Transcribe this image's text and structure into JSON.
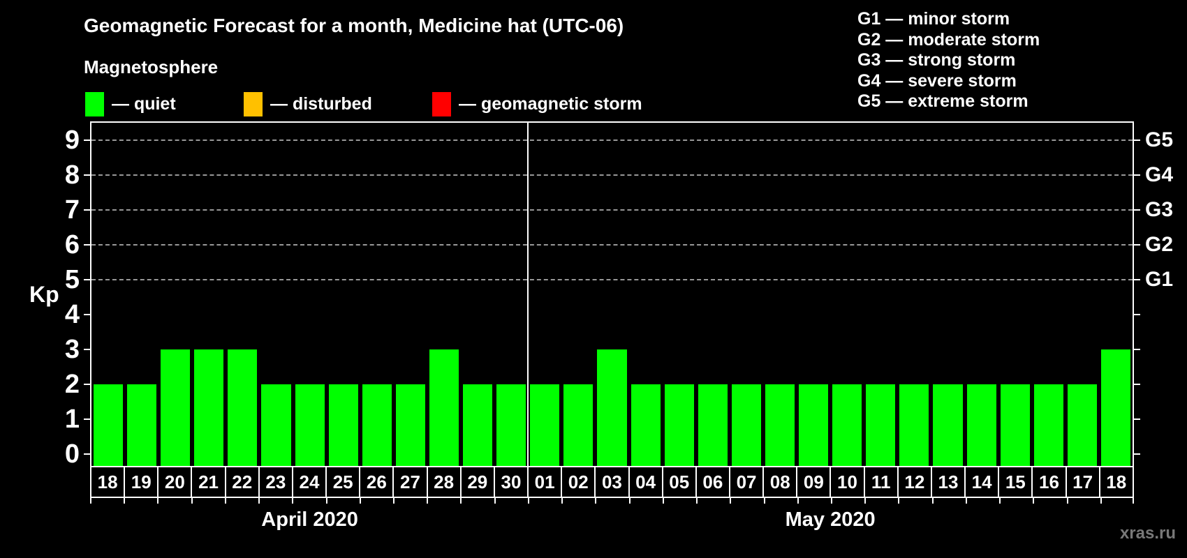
{
  "title": "Geomagnetic Forecast for a month, Medicine hat (UTC-06)",
  "legend": {
    "heading": "Magnetosphere",
    "items": [
      {
        "name": "quiet",
        "label": "— quiet",
        "color": "#00ff00"
      },
      {
        "name": "disturbed",
        "label": "— disturbed",
        "color": "#ffc000"
      },
      {
        "name": "storm",
        "label": "— geomagnetic storm",
        "color": "#ff0000"
      }
    ]
  },
  "g_scale_legend": [
    "G1 — minor storm",
    "G2 — moderate storm",
    "G3 — strong storm",
    "G4 — severe storm",
    "G5 — extreme storm"
  ],
  "watermark": "xras.ru",
  "chart_data": {
    "type": "bar",
    "title": "Geomagnetic Forecast for a month, Medicine hat (UTC-06)",
    "ylabel": "Kp",
    "ylim": [
      0,
      9
    ],
    "yticks": [
      0,
      1,
      2,
      3,
      4,
      5,
      6,
      7,
      8,
      9
    ],
    "gridlines_at": [
      5,
      6,
      7,
      8,
      9
    ],
    "grid": "dashed horizontal at G-storm levels only",
    "legend_position": "top",
    "right_axis": [
      {
        "kp": 5,
        "label": "G1"
      },
      {
        "kp": 6,
        "label": "G2"
      },
      {
        "kp": 7,
        "label": "G3"
      },
      {
        "kp": 8,
        "label": "G4"
      },
      {
        "kp": 9,
        "label": "G5"
      }
    ],
    "color_thresholds": {
      "quiet_max": 3,
      "disturbed_max": 4
    },
    "months": [
      {
        "label": "April 2020",
        "days": [
          "18",
          "19",
          "20",
          "21",
          "22",
          "23",
          "24",
          "25",
          "26",
          "27",
          "28",
          "29",
          "30"
        ],
        "values": [
          2,
          2,
          3,
          3,
          3,
          2,
          2,
          2,
          2,
          2,
          3,
          2,
          2
        ]
      },
      {
        "label": "May 2020",
        "days": [
          "01",
          "02",
          "03",
          "04",
          "05",
          "06",
          "07",
          "08",
          "09",
          "10",
          "11",
          "12",
          "13",
          "14",
          "15",
          "16",
          "17",
          "18"
        ],
        "values": [
          2,
          2,
          3,
          2,
          2,
          2,
          2,
          2,
          2,
          2,
          2,
          2,
          2,
          2,
          2,
          2,
          2,
          3
        ]
      }
    ]
  }
}
